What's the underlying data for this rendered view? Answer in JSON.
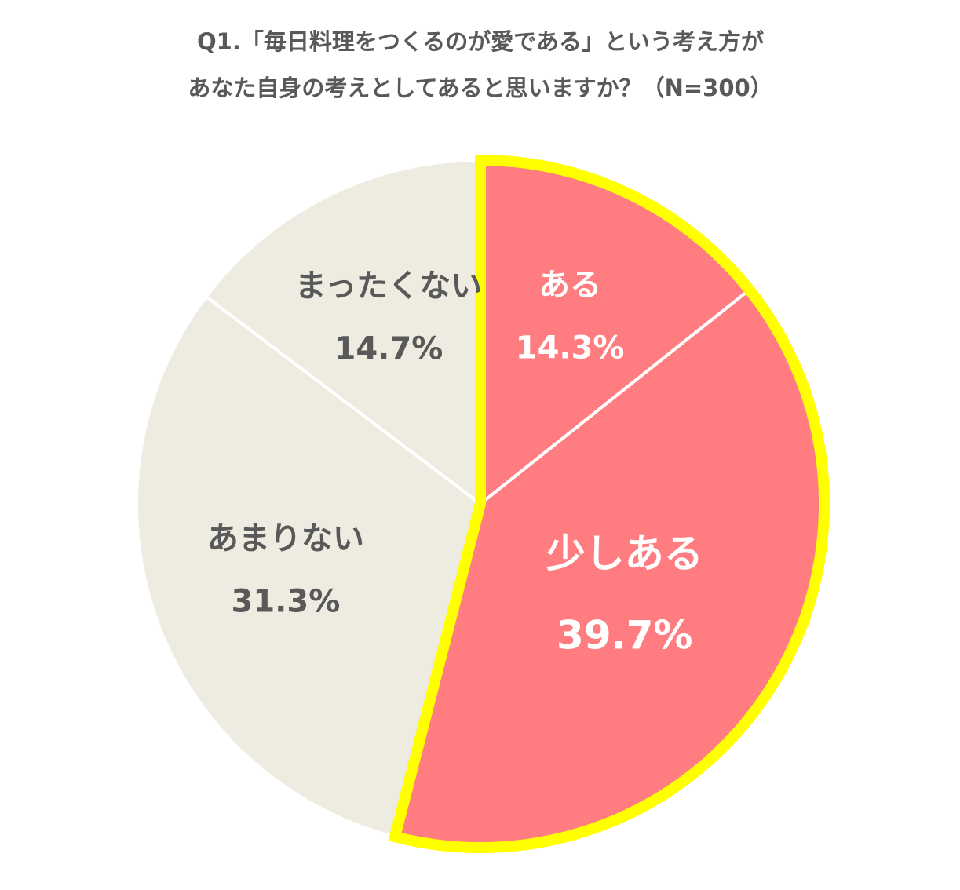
{
  "chart_data": {
    "type": "pie",
    "title": [
      "Q1.「毎日料理をつくるのが愛である」という考え方が",
      "あなた自身の考えとしてあると思いますか？（N=300）"
    ],
    "categories": [
      "ある",
      "少しある",
      "あまりない",
      "まったくない"
    ],
    "values": [
      14.3,
      39.7,
      31.3,
      14.7
    ],
    "value_labels": [
      "14.3%",
      "39.7%",
      "31.3%",
      "14.7%"
    ],
    "colors": [
      "#ff7c80",
      "#ff7c80",
      "#eeebe0",
      "#eeebe0"
    ],
    "label_colors": [
      "#ffffff",
      "#ffffff",
      "#595959",
      "#595959"
    ],
    "highlight": [
      0,
      1
    ],
    "highlight_color": "#ffff00"
  }
}
